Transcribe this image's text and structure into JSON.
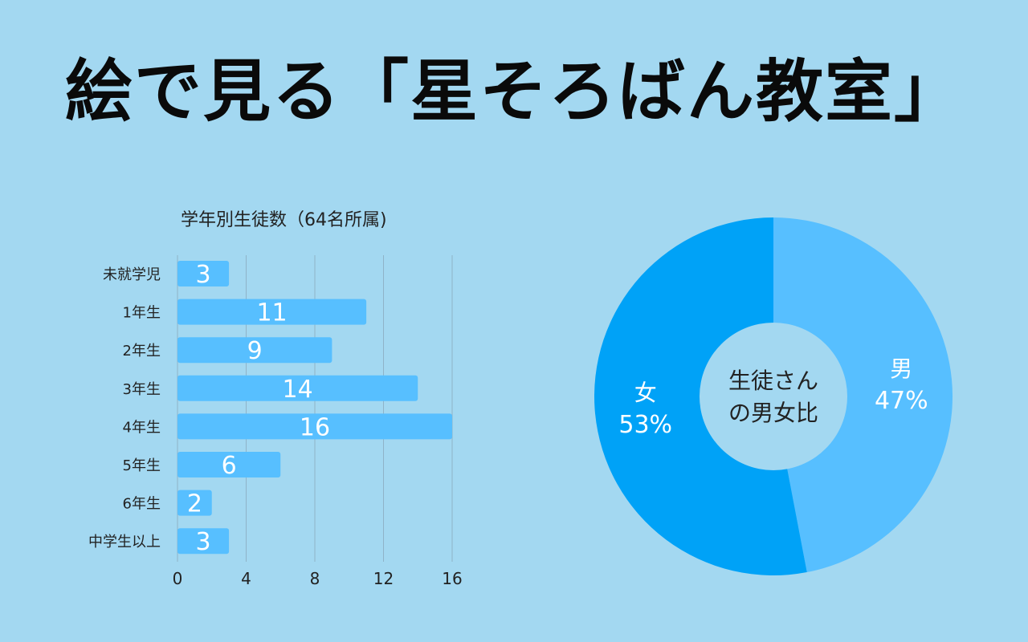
{
  "title": "絵で見る「星そろばん教室」",
  "colors": {
    "background": "#a3d8f1",
    "bar": "#57bfff",
    "pie_male": "#57bfff",
    "pie_female": "#00a2f7",
    "pie_center": "#a3d8f1",
    "grid": "#8fb3c8",
    "text_dark": "#222222",
    "text_light": "#ffffff"
  },
  "chart_data": [
    {
      "type": "bar",
      "orientation": "horizontal",
      "title": "学年別生徒数（64名所属)",
      "categories": [
        "未就学児",
        "1年生",
        "2年生",
        "3年生",
        "4年生",
        "5年生",
        "6年生",
        "中学生以上"
      ],
      "values": [
        3,
        11,
        9,
        14,
        16,
        6,
        2,
        3
      ],
      "xlim": [
        0,
        16
      ],
      "xticks": [
        "0",
        "4",
        "8",
        "12",
        "16"
      ],
      "grid": true,
      "data_labels": true
    },
    {
      "type": "pie",
      "donut": true,
      "center_label": [
        "生徒さん",
        "の男女比"
      ],
      "slices": [
        {
          "name": "男",
          "value": 47,
          "label": "47%"
        },
        {
          "name": "女",
          "value": 53,
          "label": "53%"
        }
      ]
    }
  ]
}
